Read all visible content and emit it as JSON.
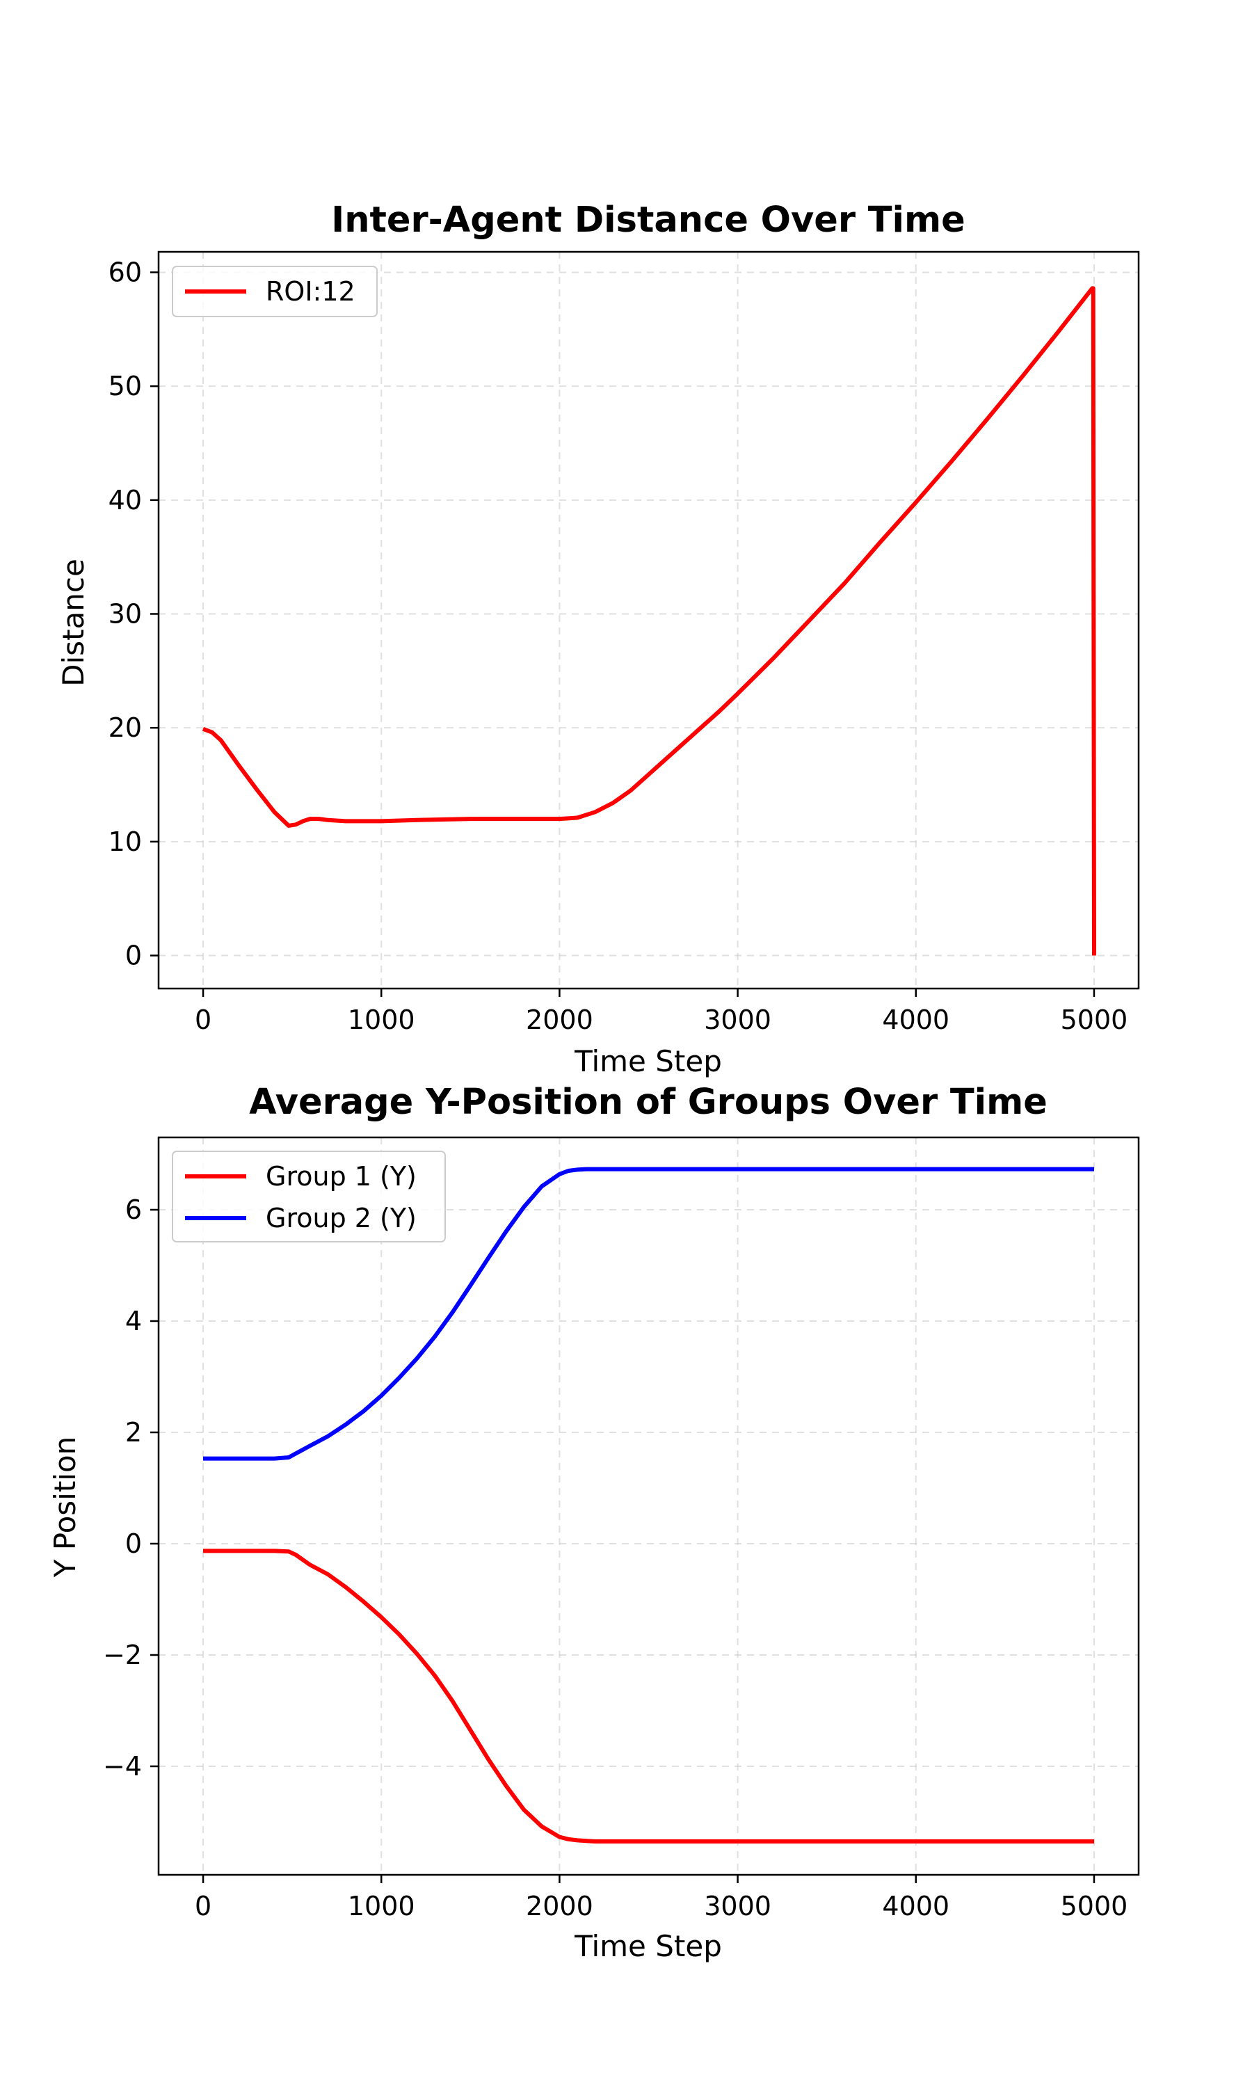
{
  "chart_data": [
    {
      "type": "line",
      "title": "Inter-Agent Distance Over Time",
      "xlabel": "Time Step",
      "ylabel": "Distance",
      "xlim": [
        -250,
        5250
      ],
      "ylim": [
        -2.9,
        61.8
      ],
      "xticks": [
        0,
        1000,
        2000,
        3000,
        4000,
        5000
      ],
      "yticks": [
        0,
        10,
        20,
        30,
        40,
        50,
        60
      ],
      "xtick_labels": [
        "0",
        "1000",
        "2000",
        "3000",
        "4000",
        "5000"
      ],
      "ytick_labels": [
        "0",
        "10",
        "20",
        "30",
        "40",
        "50",
        "60"
      ],
      "grid": true,
      "legend_position": "upper-left",
      "series": [
        {
          "name": "ROI:12",
          "color": "#ff0000",
          "x": [
            0,
            50,
            100,
            200,
            300,
            400,
            480,
            520,
            560,
            600,
            650,
            700,
            800,
            1000,
            1200,
            1500,
            1800,
            2000,
            2100,
            2200,
            2300,
            2400,
            2500,
            2600,
            2700,
            2800,
            2900,
            3000,
            3200,
            3400,
            3600,
            3800,
            4000,
            4200,
            4400,
            4600,
            4800,
            4990,
            4995,
            5000
          ],
          "y": [
            19.9,
            19.6,
            18.9,
            16.7,
            14.6,
            12.6,
            11.4,
            11.5,
            11.8,
            12.0,
            12.0,
            11.9,
            11.8,
            11.8,
            11.9,
            12.0,
            12.0,
            12.0,
            12.1,
            12.6,
            13.4,
            14.5,
            15.9,
            17.3,
            18.7,
            20.1,
            21.5,
            23.0,
            26.1,
            29.4,
            32.7,
            36.3,
            39.8,
            43.4,
            47.1,
            50.9,
            54.8,
            58.6,
            58.6,
            0
          ]
        }
      ]
    },
    {
      "type": "line",
      "title": "Average Y-Position of Groups Over Time",
      "xlabel": "Time Step",
      "ylabel": "Y Position",
      "xlim": [
        -250,
        5250
      ],
      "ylim": [
        -5.95,
        7.3
      ],
      "xticks": [
        0,
        1000,
        2000,
        3000,
        4000,
        5000
      ],
      "yticks": [
        -4,
        -2,
        0,
        2,
        4,
        6
      ],
      "xtick_labels": [
        "0",
        "1000",
        "2000",
        "3000",
        "4000",
        "5000"
      ],
      "ytick_labels": [
        "−4",
        "−2",
        "0",
        "2",
        "4",
        "6"
      ],
      "grid": true,
      "legend_position": "upper-left",
      "series": [
        {
          "name": "Group 1 (Y)",
          "color": "#ff0000",
          "x": [
            0,
            100,
            200,
            300,
            400,
            480,
            520,
            600,
            700,
            800,
            900,
            1000,
            1100,
            1200,
            1300,
            1400,
            1500,
            1600,
            1700,
            1800,
            1900,
            2000,
            2050,
            2100,
            2150,
            2200,
            2500,
            3000,
            3500,
            4000,
            4500,
            5000
          ],
          "y": [
            -0.13,
            -0.13,
            -0.13,
            -0.13,
            -0.13,
            -0.14,
            -0.2,
            -0.38,
            -0.55,
            -0.78,
            -1.04,
            -1.32,
            -1.63,
            -1.98,
            -2.37,
            -2.83,
            -3.35,
            -3.87,
            -4.35,
            -4.78,
            -5.08,
            -5.27,
            -5.31,
            -5.33,
            -5.34,
            -5.35,
            -5.35,
            -5.35,
            -5.35,
            -5.35,
            -5.35,
            -5.35
          ]
        },
        {
          "name": "Group 2 (Y)",
          "color": "#0000ff",
          "x": [
            0,
            100,
            200,
            300,
            400,
            480,
            520,
            600,
            700,
            800,
            900,
            1000,
            1100,
            1200,
            1300,
            1400,
            1500,
            1600,
            1700,
            1800,
            1900,
            2000,
            2050,
            2100,
            2150,
            2200,
            2500,
            3000,
            3500,
            4000,
            4500,
            5000
          ],
          "y": [
            1.53,
            1.53,
            1.53,
            1.53,
            1.53,
            1.55,
            1.62,
            1.76,
            1.93,
            2.14,
            2.38,
            2.66,
            2.98,
            3.33,
            3.72,
            4.16,
            4.64,
            5.13,
            5.61,
            6.05,
            6.42,
            6.64,
            6.7,
            6.72,
            6.73,
            6.73,
            6.73,
            6.73,
            6.73,
            6.73,
            6.73,
            6.73
          ]
        }
      ]
    }
  ]
}
